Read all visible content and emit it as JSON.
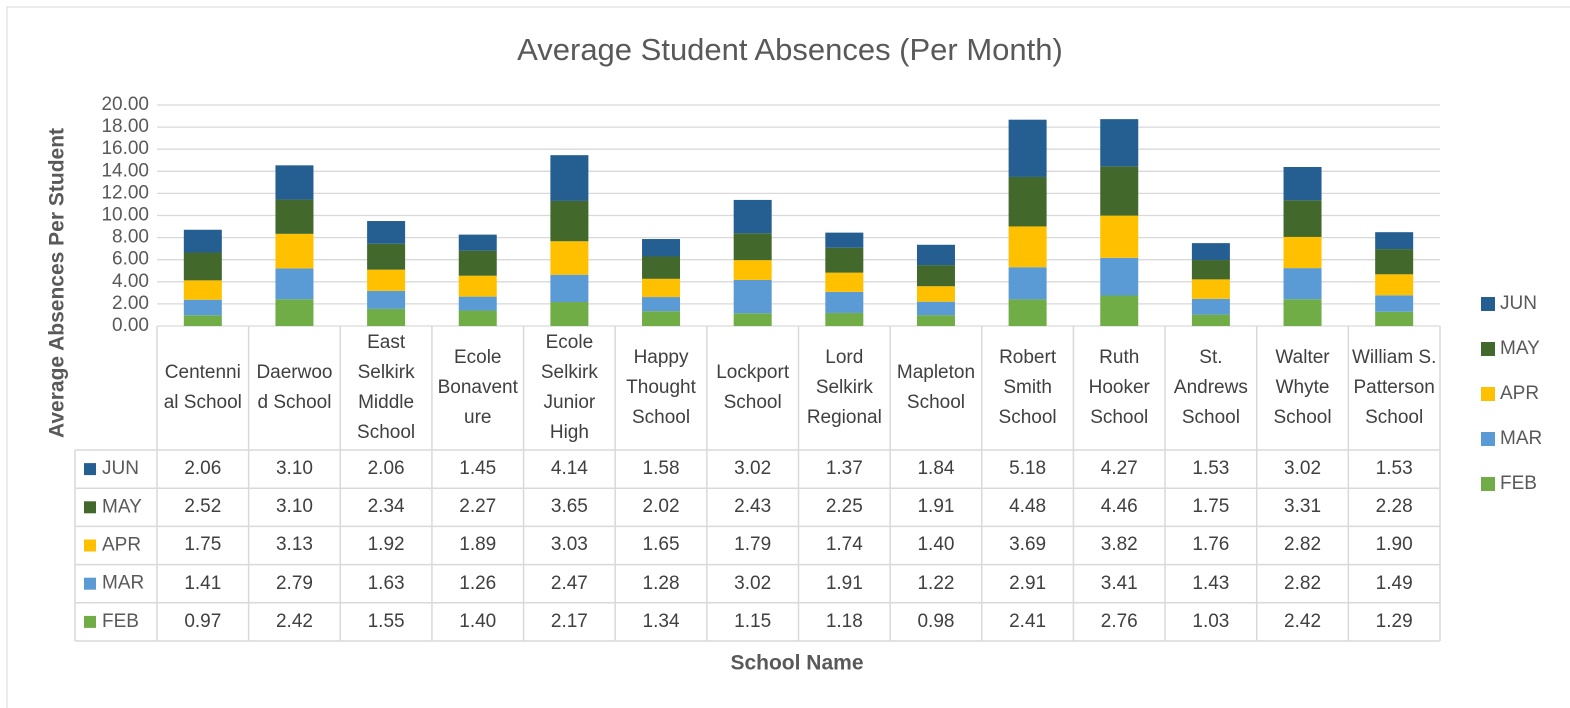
{
  "chart_data": {
    "type": "stacked_bar",
    "title": "Average Student Absences (Per Month)",
    "y_label": "Average Absences Per Student",
    "x_label": "School Name",
    "categories": [
      "Centennial School",
      "Daerwood School",
      "East Selkirk Middle School",
      "Ecole Bonaventure",
      "Ecole Selkirk Junior High",
      "Happy Thought School",
      "Lockport School",
      "Lord Selkirk Regional",
      "Mapleton School",
      "Robert Smith School",
      "Ruth Hooker School",
      "St. Andrews School",
      "Walter Whyte School",
      "William S. Patterson School"
    ],
    "series": [
      {
        "name": "FEB",
        "color": "#70ad47",
        "values": [
          0.97,
          2.42,
          1.55,
          1.4,
          2.17,
          1.34,
          1.15,
          1.18,
          0.98,
          2.41,
          2.76,
          1.03,
          2.42,
          1.29
        ],
        "value_labels": [
          "0.97",
          "2.42",
          "1.55",
          "1.40",
          "2.17",
          "1.34",
          "1.15",
          "1.18",
          "0.98",
          "2.41",
          "2.76",
          "1.03",
          "2.42",
          "1.29"
        ]
      },
      {
        "name": "MAR",
        "color": "#5b9bd5",
        "values": [
          1.41,
          2.79,
          1.63,
          1.26,
          2.47,
          1.28,
          3.02,
          1.91,
          1.22,
          2.91,
          3.41,
          1.43,
          2.82,
          1.49
        ],
        "value_labels": [
          "1.41",
          "2.79",
          "1.63",
          "1.26",
          "2.47",
          "1.28",
          "3.02",
          "1.91",
          "1.22",
          "2.91",
          "3.41",
          "1.43",
          "2.82",
          "1.49"
        ]
      },
      {
        "name": "APR",
        "color": "#ffc000",
        "values": [
          1.75,
          3.13,
          1.92,
          1.89,
          3.03,
          1.65,
          1.79,
          1.74,
          1.4,
          3.69,
          3.82,
          1.76,
          2.82,
          1.9
        ],
        "value_labels": [
          "1.75",
          "3.13",
          "1.92",
          "1.89",
          "3.03",
          "1.65",
          "1.79",
          "1.74",
          "1.40",
          "3.69",
          "3.82",
          "1.76",
          "2.82",
          "1.90"
        ]
      },
      {
        "name": "MAY",
        "color": "#43682b",
        "values": [
          2.52,
          3.1,
          2.34,
          2.27,
          3.65,
          2.02,
          2.43,
          2.25,
          1.91,
          4.48,
          4.46,
          1.75,
          3.31,
          2.28
        ],
        "value_labels": [
          "2.52",
          "3.10",
          "2.34",
          "2.27",
          "3.65",
          "2.02",
          "2.43",
          "2.25",
          "1.91",
          "4.48",
          "4.46",
          "1.75",
          "3.31",
          "2.28"
        ]
      },
      {
        "name": "JUN",
        "color": "#255e91",
        "values": [
          2.06,
          3.1,
          2.06,
          1.45,
          4.14,
          1.58,
          3.02,
          1.37,
          1.84,
          5.18,
          4.27,
          1.53,
          3.02,
          1.53
        ],
        "value_labels": [
          "2.06",
          "3.10",
          "2.06",
          "1.45",
          "4.14",
          "1.58",
          "3.02",
          "1.37",
          "1.84",
          "5.18",
          "4.27",
          "1.53",
          "3.02",
          "1.53"
        ]
      }
    ],
    "ylim": [
      0,
      20
    ],
    "yticks": [
      {
        "value": 0,
        "label": "0.00"
      },
      {
        "value": 2,
        "label": "2.00"
      },
      {
        "value": 4,
        "label": "4.00"
      },
      {
        "value": 6,
        "label": "6.00"
      },
      {
        "value": 8,
        "label": "8.00"
      },
      {
        "value": 10,
        "label": "10.00"
      },
      {
        "value": 12,
        "label": "12.00"
      },
      {
        "value": 14,
        "label": "14.00"
      },
      {
        "value": 16,
        "label": "16.00"
      },
      {
        "value": 18,
        "label": "18.00"
      },
      {
        "value": 20,
        "label": "20.00"
      }
    ],
    "grid": true,
    "legend": "right"
  }
}
